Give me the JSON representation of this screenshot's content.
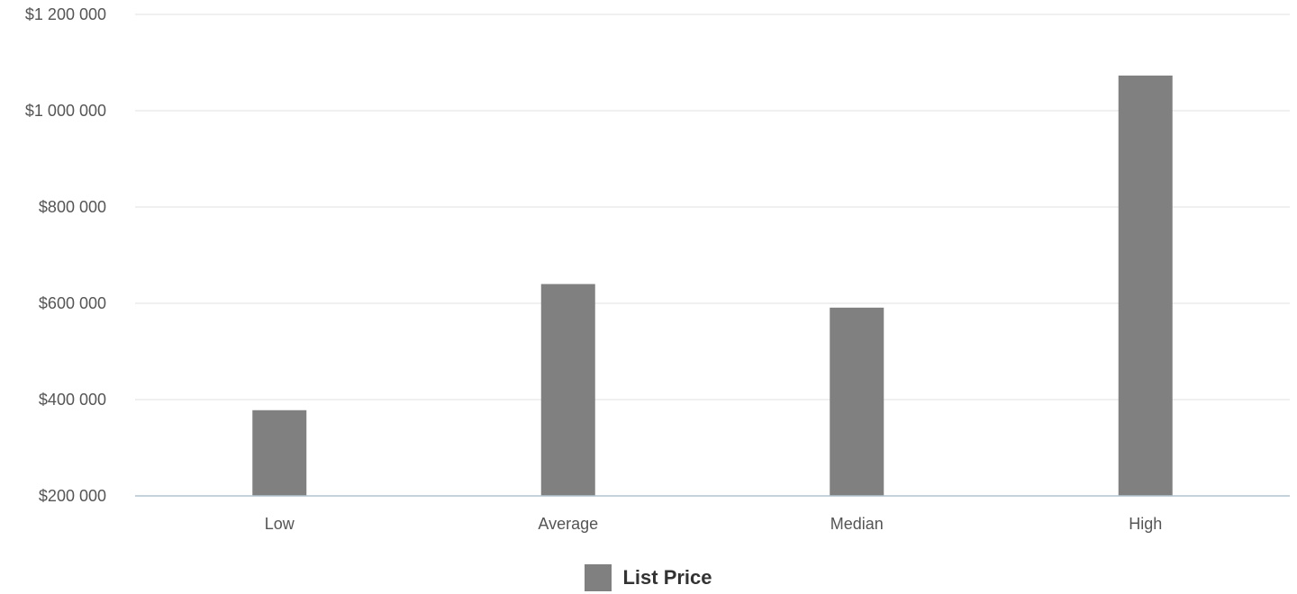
{
  "colors": {
    "bar": "#808080",
    "grid": "#e0e0e0",
    "axis": "#b0c4cf",
    "text": "#555555"
  },
  "chart_data": {
    "type": "bar",
    "categories": [
      "Low",
      "Average",
      "Median",
      "High"
    ],
    "series": [
      {
        "name": "List Price",
        "values": [
          378000,
          640000,
          591000,
          1073000
        ]
      }
    ],
    "ylim": [
      200000,
      1200000
    ],
    "yticks": [
      200000,
      400000,
      600000,
      800000,
      1000000,
      1200000
    ],
    "ytick_labels": [
      "$200 000",
      "$400 000",
      "$600 000",
      "$800 000",
      "$1 000 000",
      "$1 200 000"
    ],
    "grid": true,
    "legend": "bottom-center"
  }
}
